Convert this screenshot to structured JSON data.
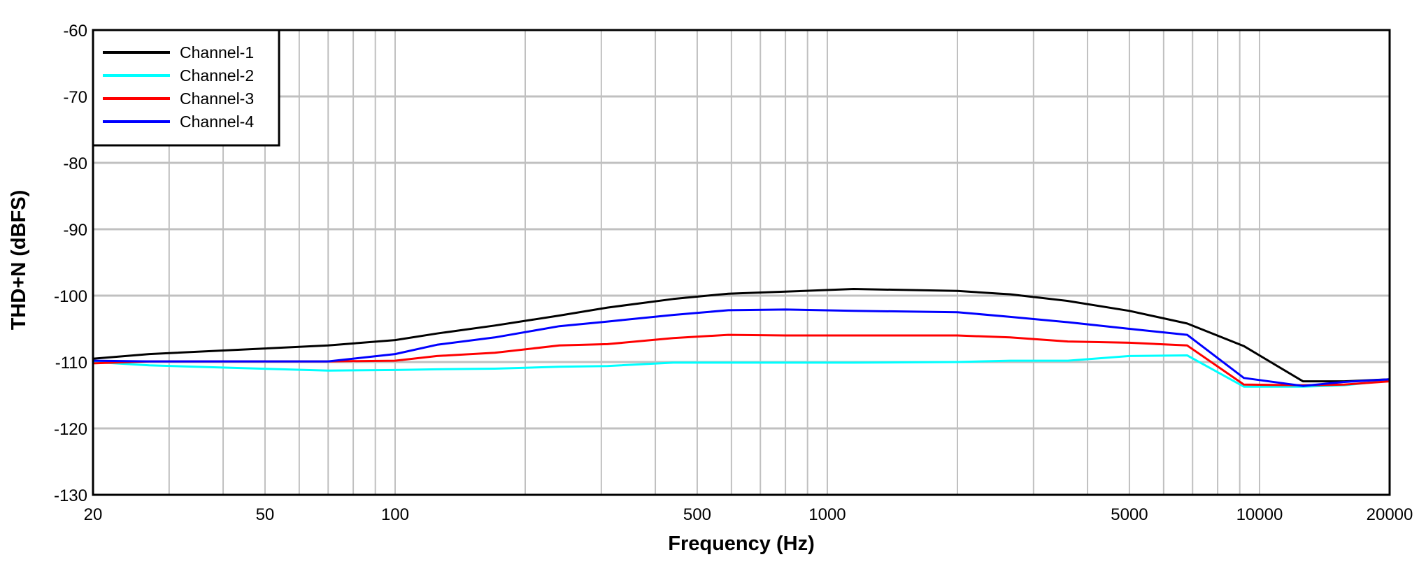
{
  "chart_data": {
    "type": "line",
    "title": "",
    "xlabel": "Frequency (Hz)",
    "ylabel": "THD+N (dBFS)",
    "xscale": "log",
    "xlim": [
      20,
      20000
    ],
    "ylim": [
      -130,
      -60
    ],
    "xticks": [
      20,
      50,
      100,
      500,
      1000,
      5000,
      10000,
      20000
    ],
    "yticks": [
      -60,
      -70,
      -80,
      -90,
      -100,
      -110,
      -120,
      -130
    ],
    "grid": true,
    "legend_position": "top-left",
    "x": [
      20,
      27,
      70,
      100,
      125,
      170,
      240,
      310,
      440,
      590,
      800,
      1150,
      2000,
      2650,
      3600,
      5000,
      6800,
      9200,
      12600,
      15700,
      20000
    ],
    "series": [
      {
        "name": "Channel-1",
        "color": "#000000",
        "values": [
          -109.5,
          -108.8,
          -107.5,
          -106.7,
          -105.7,
          -104.5,
          -103,
          -101.8,
          -100.5,
          -99.7,
          -99.4,
          -99,
          -99.3,
          -99.8,
          -100.8,
          -102.3,
          -104.2,
          -107.6,
          -112.9,
          -112.9,
          -112.6
        ]
      },
      {
        "name": "Channel-2",
        "color": "#00ffff",
        "values": [
          -110,
          -110.5,
          -111.3,
          -111.2,
          -111.1,
          -111,
          -110.7,
          -110.6,
          -110.1,
          -110.1,
          -110.1,
          -110.1,
          -110,
          -109.8,
          -109.8,
          -109.1,
          -109,
          -113.7,
          -113.7,
          -113.5,
          -112.8
        ]
      },
      {
        "name": "Channel-3",
        "color": "#ff0000",
        "values": [
          -110.2,
          -109.9,
          -109.9,
          -109.8,
          -109.1,
          -108.6,
          -107.5,
          -107.3,
          -106.4,
          -105.9,
          -106,
          -106,
          -106,
          -106.3,
          -106.9,
          -107.1,
          -107.5,
          -113.4,
          -113.5,
          -113.4,
          -112.9
        ]
      },
      {
        "name": "Channel-4",
        "color": "#0000ff",
        "values": [
          -109.8,
          -109.9,
          -109.9,
          -108.8,
          -107.4,
          -106.3,
          -104.6,
          -103.9,
          -102.9,
          -102.2,
          -102.1,
          -102.3,
          -102.5,
          -103.2,
          -104,
          -105,
          -105.9,
          -112.4,
          -113.6,
          -113,
          -112.6
        ]
      }
    ]
  }
}
